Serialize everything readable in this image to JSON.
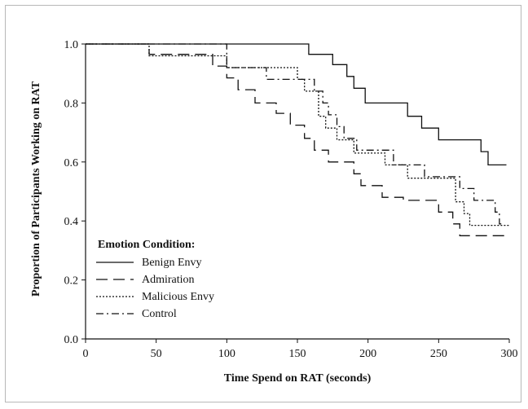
{
  "chart_data": {
    "type": "line",
    "title": "",
    "xlabel": "Time Spend on RAT (seconds)",
    "ylabel": "Proportion of Participants Working on RAT",
    "xlim": [
      0,
      300
    ],
    "ylim": [
      0,
      1.0
    ],
    "x_ticks": [
      0,
      50,
      100,
      150,
      200,
      250,
      300
    ],
    "y_ticks": [
      "0.0",
      "0.2",
      "0.4",
      "0.6",
      "0.8",
      "1.0"
    ],
    "grid": false,
    "legend": {
      "title": "Emotion Condition:",
      "placement": "bottom-left"
    },
    "series": [
      {
        "name": "Benign Envy",
        "dash": "solid",
        "step_points": [
          [
            0,
            1.0
          ],
          [
            158,
            1.0
          ],
          [
            158,
            0.965
          ],
          [
            175,
            0.965
          ],
          [
            175,
            0.93
          ],
          [
            185,
            0.93
          ],
          [
            185,
            0.89
          ],
          [
            190,
            0.89
          ],
          [
            190,
            0.85
          ],
          [
            198,
            0.85
          ],
          [
            198,
            0.8
          ],
          [
            228,
            0.8
          ],
          [
            228,
            0.755
          ],
          [
            238,
            0.755
          ],
          [
            238,
            0.715
          ],
          [
            250,
            0.715
          ],
          [
            250,
            0.675
          ],
          [
            280,
            0.675
          ],
          [
            280,
            0.635
          ],
          [
            285,
            0.635
          ],
          [
            285,
            0.59
          ],
          [
            298,
            0.59
          ]
        ]
      },
      {
        "name": "Admiration",
        "dash": "long-dash",
        "step_points": [
          [
            0,
            1.0
          ],
          [
            45,
            1.0
          ],
          [
            45,
            0.965
          ],
          [
            90,
            0.965
          ],
          [
            90,
            0.925
          ],
          [
            100,
            0.925
          ],
          [
            100,
            0.885
          ],
          [
            108,
            0.885
          ],
          [
            108,
            0.845
          ],
          [
            120,
            0.845
          ],
          [
            120,
            0.8
          ],
          [
            135,
            0.8
          ],
          [
            135,
            0.765
          ],
          [
            145,
            0.765
          ],
          [
            145,
            0.725
          ],
          [
            155,
            0.725
          ],
          [
            155,
            0.68
          ],
          [
            162,
            0.68
          ],
          [
            162,
            0.64
          ],
          [
            172,
            0.64
          ],
          [
            172,
            0.6
          ],
          [
            190,
            0.6
          ],
          [
            190,
            0.56
          ],
          [
            195,
            0.56
          ],
          [
            195,
            0.52
          ],
          [
            210,
            0.52
          ],
          [
            210,
            0.48
          ],
          [
            225,
            0.48
          ],
          [
            225,
            0.47
          ],
          [
            250,
            0.47
          ],
          [
            250,
            0.43
          ],
          [
            260,
            0.43
          ],
          [
            260,
            0.39
          ],
          [
            265,
            0.39
          ],
          [
            265,
            0.35
          ],
          [
            300,
            0.35
          ]
        ]
      },
      {
        "name": "Malicious Envy",
        "dash": "dotted",
        "step_points": [
          [
            0,
            1.0
          ],
          [
            45,
            1.0
          ],
          [
            45,
            0.96
          ],
          [
            100,
            0.96
          ],
          [
            100,
            0.92
          ],
          [
            150,
            0.92
          ],
          [
            150,
            0.88
          ],
          [
            155,
            0.88
          ],
          [
            155,
            0.84
          ],
          [
            165,
            0.84
          ],
          [
            165,
            0.755
          ],
          [
            170,
            0.755
          ],
          [
            170,
            0.715
          ],
          [
            178,
            0.715
          ],
          [
            178,
            0.675
          ],
          [
            190,
            0.675
          ],
          [
            190,
            0.63
          ],
          [
            212,
            0.63
          ],
          [
            212,
            0.59
          ],
          [
            228,
            0.59
          ],
          [
            228,
            0.545
          ],
          [
            262,
            0.545
          ],
          [
            262,
            0.465
          ],
          [
            268,
            0.465
          ],
          [
            268,
            0.425
          ],
          [
            272,
            0.425
          ],
          [
            272,
            0.385
          ],
          [
            300,
            0.385
          ]
        ]
      },
      {
        "name": "Control",
        "dash": "dash-dot",
        "step_points": [
          [
            0,
            1.0
          ],
          [
            100,
            1.0
          ],
          [
            100,
            0.92
          ],
          [
            128,
            0.92
          ],
          [
            128,
            0.88
          ],
          [
            162,
            0.88
          ],
          [
            162,
            0.84
          ],
          [
            168,
            0.84
          ],
          [
            168,
            0.8
          ],
          [
            172,
            0.8
          ],
          [
            172,
            0.76
          ],
          [
            178,
            0.76
          ],
          [
            178,
            0.72
          ],
          [
            183,
            0.72
          ],
          [
            183,
            0.68
          ],
          [
            192,
            0.68
          ],
          [
            192,
            0.64
          ],
          [
            218,
            0.64
          ],
          [
            218,
            0.59
          ],
          [
            240,
            0.59
          ],
          [
            240,
            0.55
          ],
          [
            265,
            0.55
          ],
          [
            265,
            0.51
          ],
          [
            275,
            0.51
          ],
          [
            275,
            0.47
          ],
          [
            290,
            0.47
          ],
          [
            290,
            0.43
          ],
          [
            293,
            0.43
          ],
          [
            293,
            0.39
          ],
          [
            295,
            0.39
          ]
        ]
      }
    ]
  }
}
